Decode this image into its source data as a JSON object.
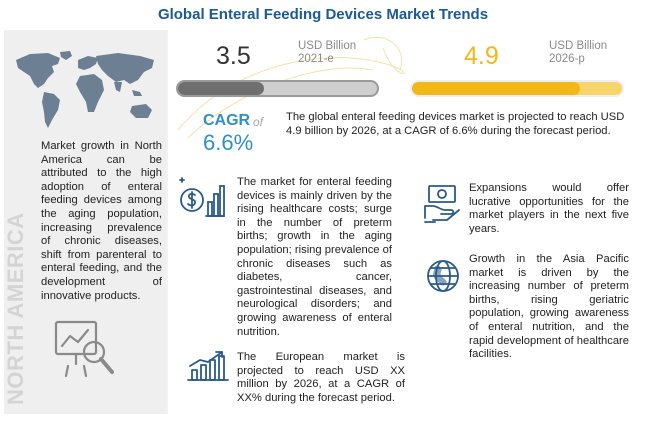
{
  "title": "Global Enteral Feeding Devices Market Trends",
  "market": {
    "value_2021": "3.5",
    "unit_2021_line1": "USD Billion",
    "unit_2021_line2": "2021-e",
    "value_2026": "4.9",
    "unit_2026_line1": "USD Billion",
    "unit_2026_line2": "2026-p",
    "bar_fill_fraction_2021": 0.43,
    "bar_fill_fraction_2026": 0.8
  },
  "cagr": {
    "label": "CAGR",
    "of": "of",
    "value": "6.6%"
  },
  "summary": "The global enteral feeding devices market is projected to reach USD 4.9 billion by 2026, at a CAGR of 6.6% during the forecast period.",
  "left_panel": {
    "text": "Market growth in North America can be attributed to the high adoption of enteral feeding devices among the aging population, increasing prevalence of chronic diseases, shift from parenteral to enteral feeding, and the development of innovative products.",
    "region_label": "NORTH AMERICA"
  },
  "drivers_text": "The market for enteral feeding devices is mainly driven by the rising healthcare costs; surge in the number of preterm births; growth in the aging population; rising prevalence of chronic diseases such as diabetes, cancer, gastrointestinal diseases, and neurological disorders; and growing awareness of enteral nutrition.",
  "europe_text": "The European market is projected to reach USD XX million by 2026, at a CAGR of XX% during the forecast period.",
  "expansion_text": "Expansions would offer lucrative opportunities for the market players in the next five years.",
  "asia_text": "Growth in the Asia Pacific market is driven by the increasing number of preterm births, rising geriatric population, growing awareness of enteral nutrition, and the rapid development of healthcare facilities.",
  "colors": {
    "title": "#1a5a96",
    "accent_blue": "#2f8fc7",
    "accent_yellow": "#f1b817",
    "bar_gray": "#6f6f6f"
  },
  "icons": {
    "map": "world-map-icon",
    "analytics": "chart-magnifier-icon",
    "drivers": "money-chart-icon",
    "europe": "growth-chart-icon",
    "expansion": "hand-money-icon",
    "asia": "globe-icon"
  }
}
